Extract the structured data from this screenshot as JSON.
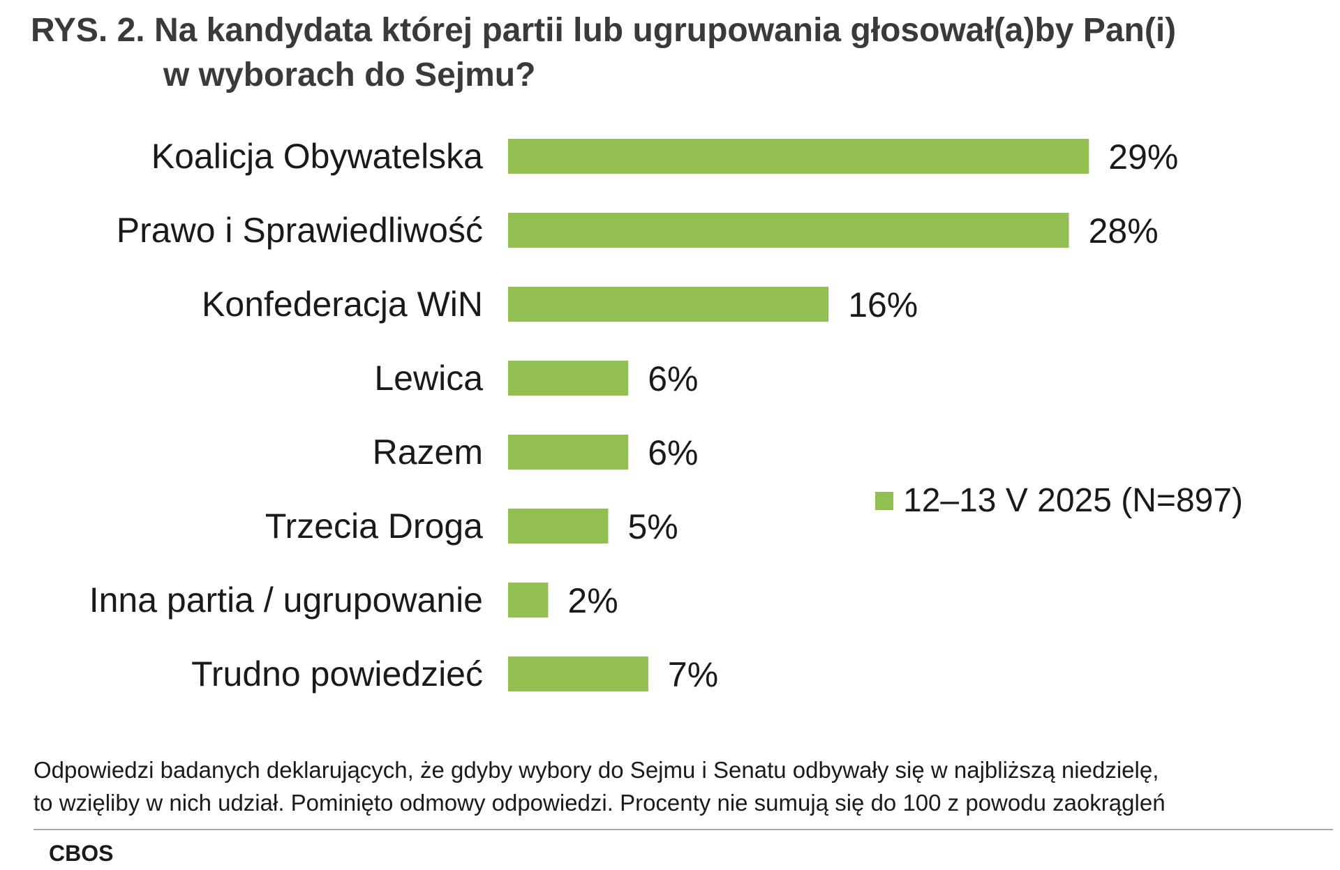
{
  "title": {
    "line1": "RYS. 2. Na kandydata której partii lub ugrupowania głosował(a)by Pan(i)",
    "line2": "w wyborach do Sejmu?"
  },
  "chart_data": {
    "type": "bar",
    "orientation": "horizontal",
    "categories": [
      "Koalicja Obywatelska",
      "Prawo i Sprawiedliwość",
      "Konfederacja WiN",
      "Lewica",
      "Razem",
      "Trzecia Droga",
      "Inna partia / ugrupowanie",
      "Trudno powiedzieć"
    ],
    "series": [
      {
        "name": "12–13 V 2025 (N=897)",
        "values": [
          29,
          28,
          16,
          6,
          6,
          5,
          2,
          7
        ],
        "labels": [
          "29%",
          "28%",
          "16%",
          "6%",
          "6%",
          "5%",
          "2%",
          "7%"
        ],
        "color": "#92c050"
      }
    ],
    "unit": "%",
    "legend_position": "right",
    "grid": false
  },
  "footnote": {
    "line1": "Odpowiedzi badanych deklarujących, że gdyby wybory do Sejmu i Senatu odbywały się w najbliższą niedzielę,",
    "line2": "to wzięliby w nich udział. Pominięto odmowy odpowiedzi. Procenty nie sumują się do 100 z powodu zaokrągleń"
  },
  "source": "CBOS"
}
